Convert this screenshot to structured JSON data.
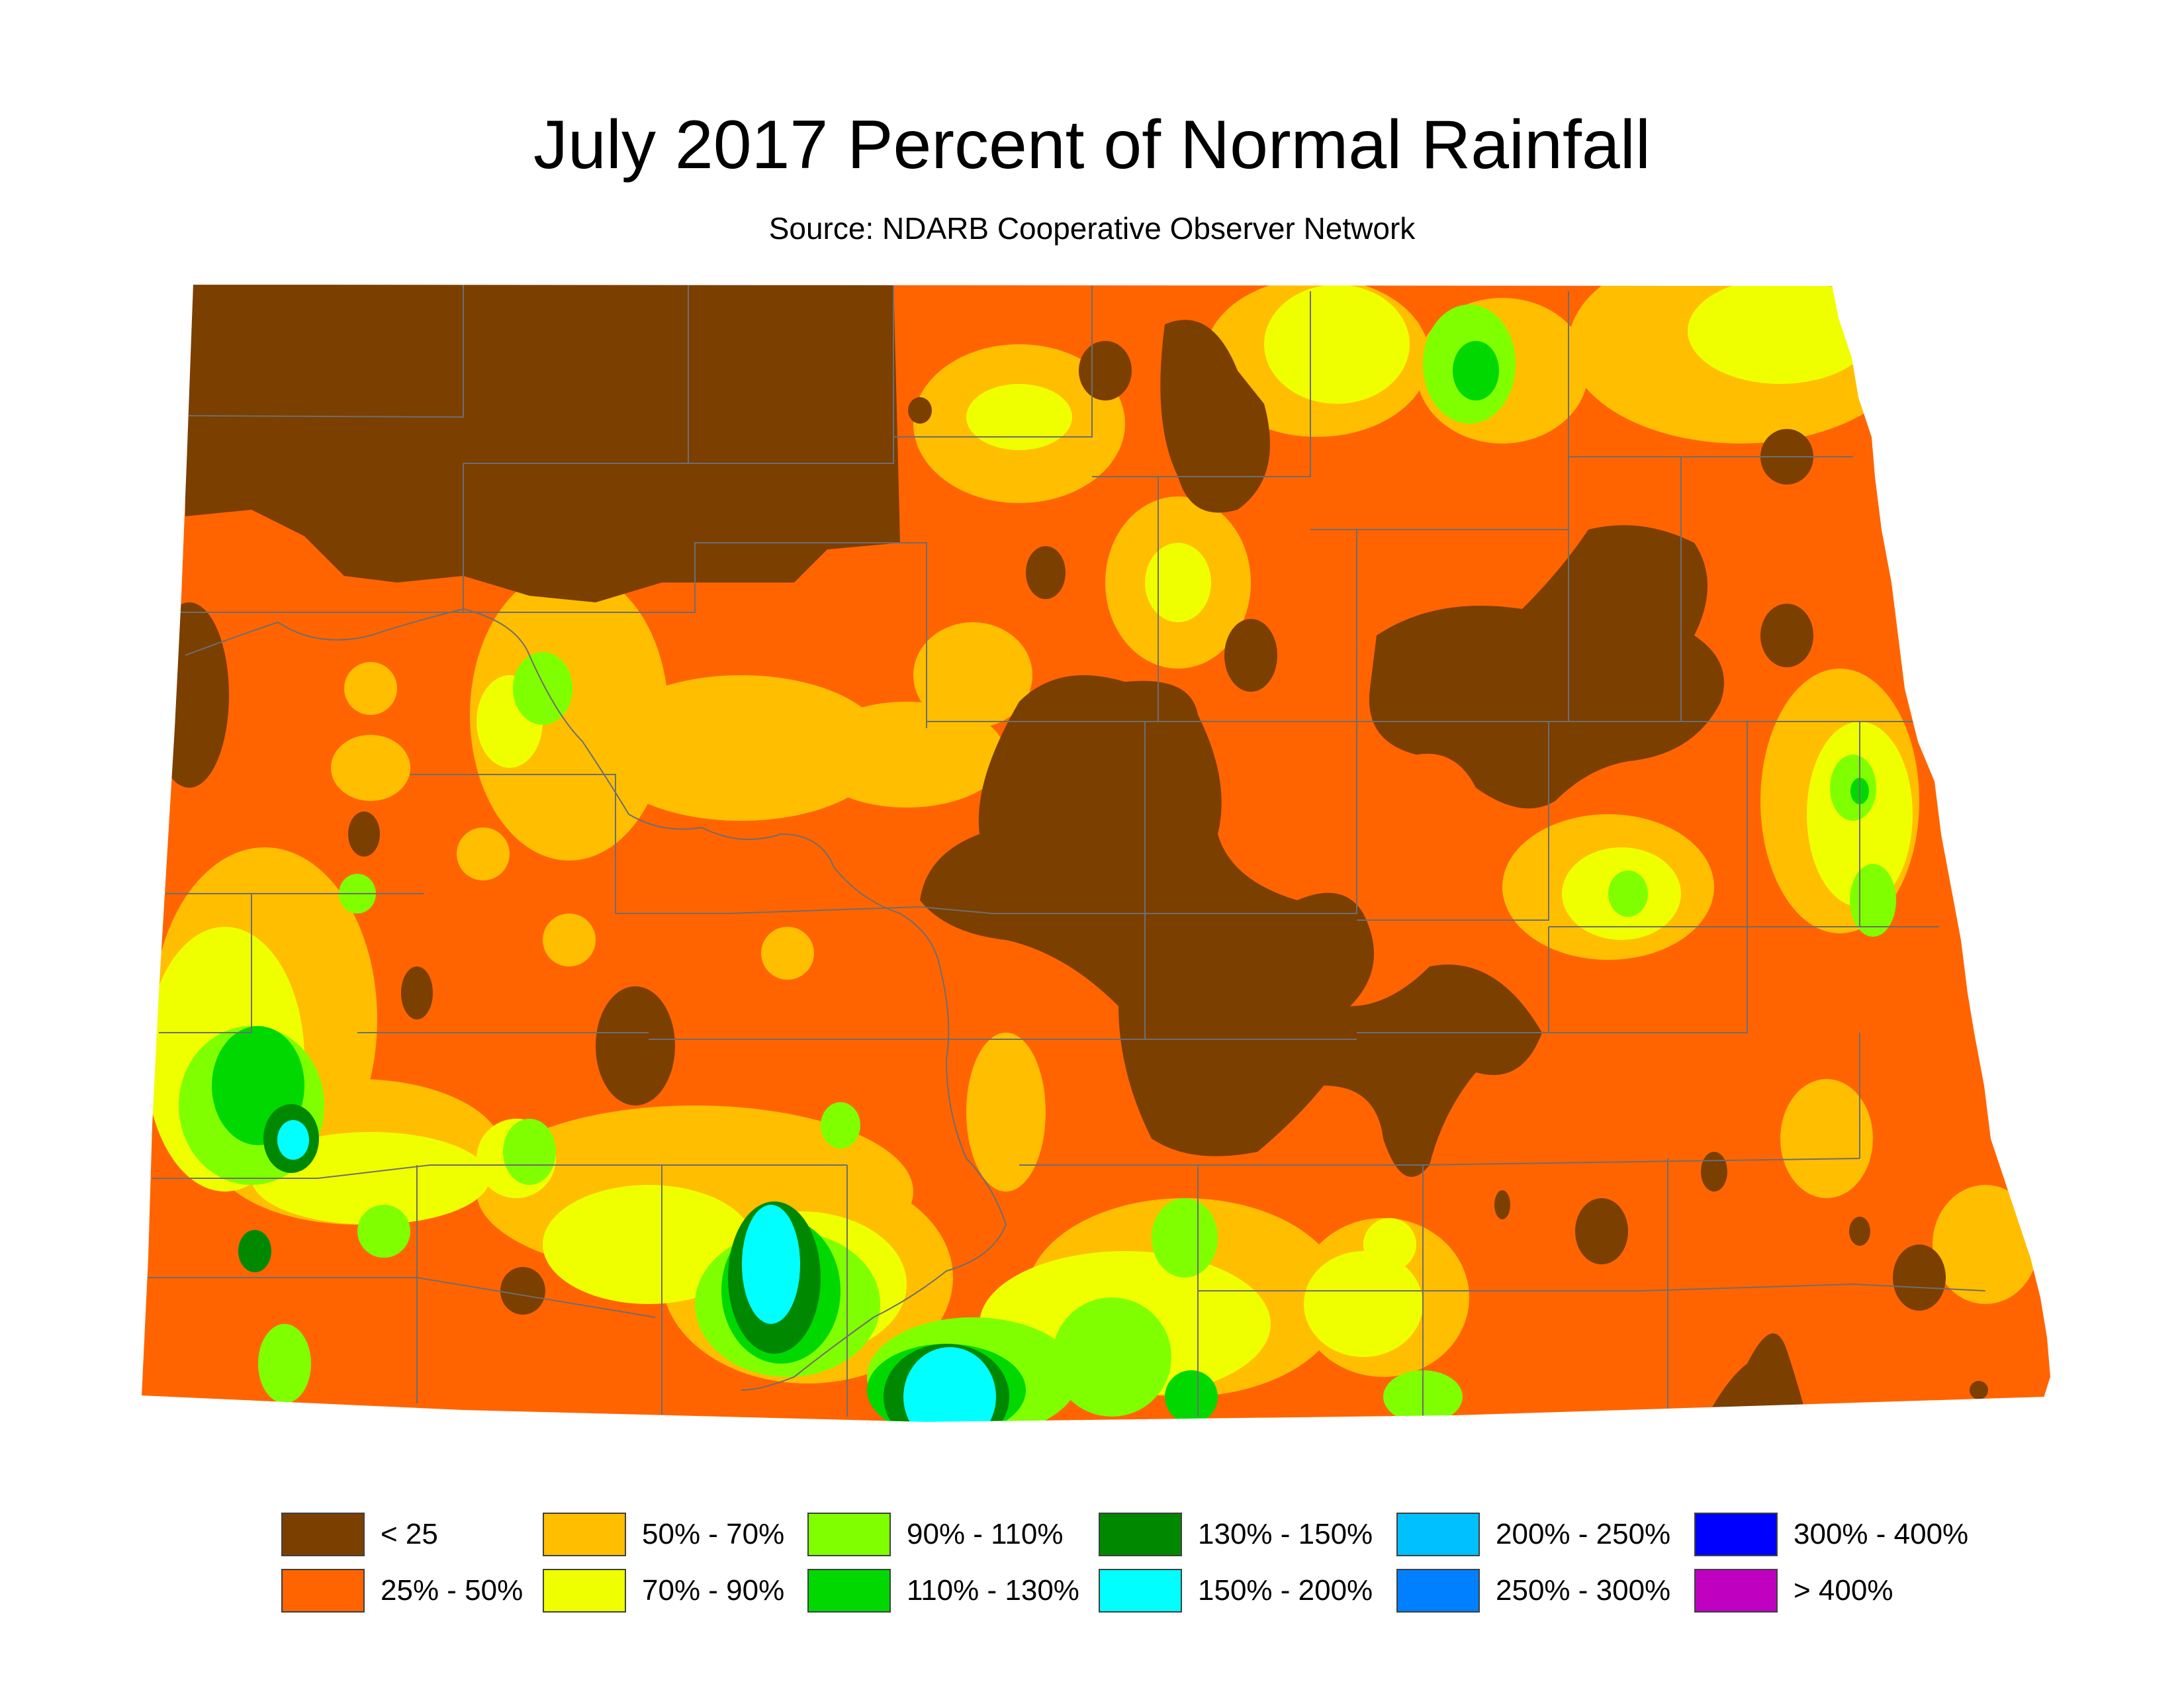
{
  "title": "July 2017 Percent of Normal Rainfall",
  "subtitle": "Source: NDARB Cooperative Observer Network",
  "legend": [
    {
      "label": "< 25",
      "color": "#7b3f00"
    },
    {
      "label": "25% - 50%",
      "color": "#ff6400"
    },
    {
      "label": "50% - 70%",
      "color": "#ffbe00"
    },
    {
      "label": "70% - 90%",
      "color": "#f0ff00"
    },
    {
      "label": "90% - 110%",
      "color": "#80ff00"
    },
    {
      "label": "110% - 130%",
      "color": "#00d800"
    },
    {
      "label": "130% - 150%",
      "color": "#008800"
    },
    {
      "label": "150% - 200%",
      "color": "#00ffff"
    },
    {
      "label": "200% - 250%",
      "color": "#00c0ff"
    },
    {
      "label": "250% - 300%",
      "color": "#0080ff"
    },
    {
      "label": "300% - 400%",
      "color": "#0000ff"
    },
    {
      "label": "> 400%",
      "color": "#c000c0"
    }
  ],
  "colors": {
    "county_boundary": "#6e6e6e"
  }
}
